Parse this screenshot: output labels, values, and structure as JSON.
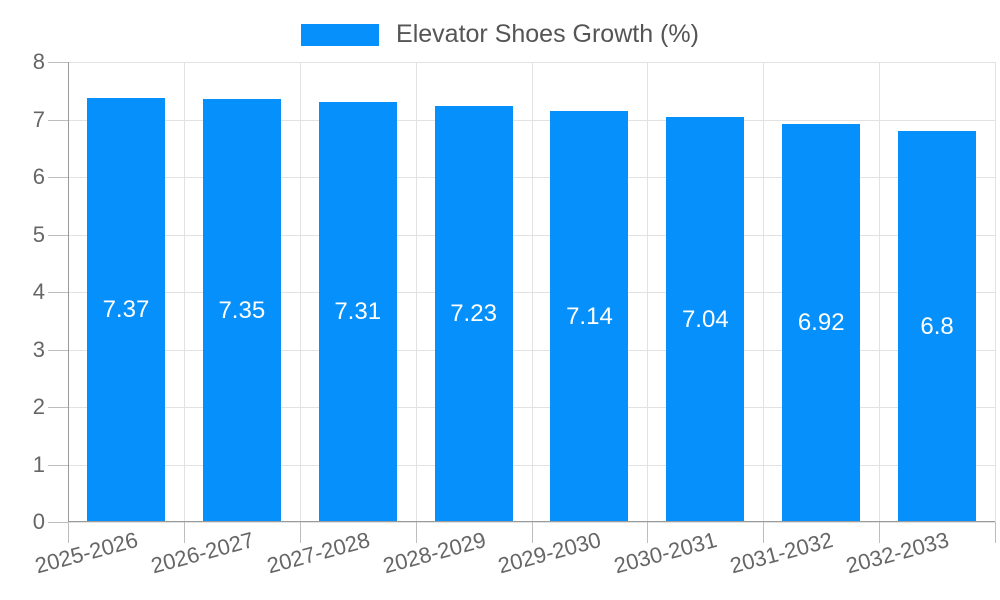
{
  "chart_data": {
    "type": "bar",
    "title": "Elevator Shoes Growth (%)",
    "legend": {
      "label": "Elevator Shoes Growth (%)",
      "position": "top"
    },
    "categories": [
      "2025-2026",
      "2026-2027",
      "2027-2028",
      "2028-2029",
      "2029-2030",
      "2030-2031",
      "2031-2032",
      "2032-2033"
    ],
    "values": [
      7.37,
      7.35,
      7.31,
      7.23,
      7.14,
      7.04,
      6.92,
      6.8
    ],
    "value_labels": [
      "7.37",
      "7.35",
      "7.31",
      "7.23",
      "7.14",
      "7.04",
      "6.92",
      "6.8"
    ],
    "xlabel": "",
    "ylabel": "",
    "ylim": [
      0,
      8
    ],
    "yticks": [
      0,
      1,
      2,
      3,
      4,
      5,
      6,
      7,
      8
    ],
    "grid": true,
    "x_label_rotation_deg": -15,
    "colors": {
      "bar": "#0590FB",
      "grid": "#E2E2E2",
      "axis": "#9B9B9B",
      "tick": "#BDBDBD",
      "axis_text": "#666666",
      "legend_text": "#555555",
      "value_text": "#FFFFFF",
      "background": "#FFFFFF"
    }
  }
}
